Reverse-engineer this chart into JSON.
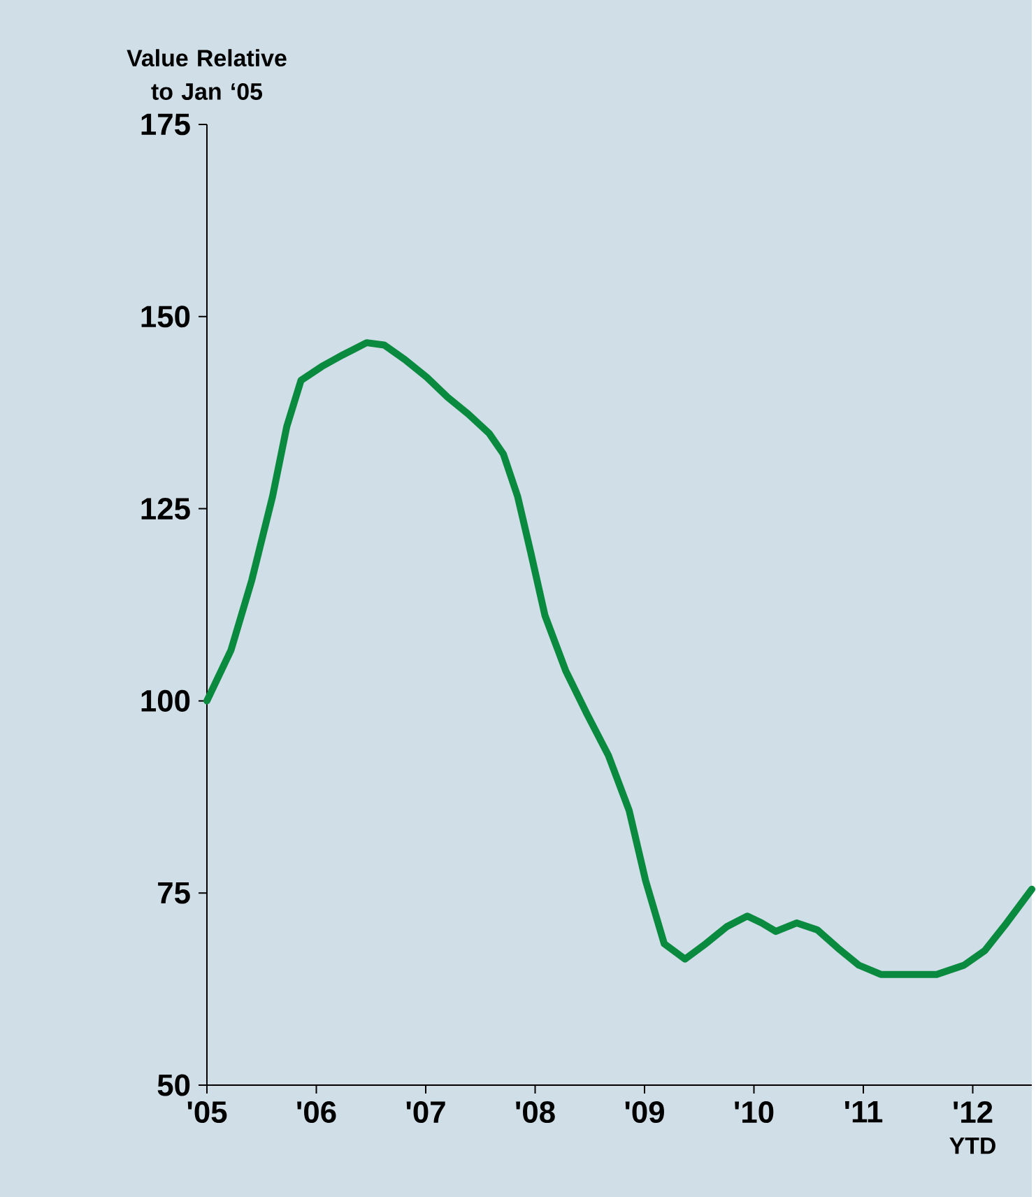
{
  "chart_data": {
    "type": "line",
    "ylabel": "Value Relative to Jan ‘05",
    "x": [
      2005.0,
      2005.22,
      2005.41,
      2005.6,
      2005.73,
      2005.86,
      2006.05,
      2006.24,
      2006.46,
      2006.62,
      2006.81,
      2007.01,
      2007.2,
      2007.39,
      2007.58,
      2007.71,
      2007.84,
      2007.96,
      2008.09,
      2008.28,
      2008.47,
      2008.67,
      2008.86,
      2009.01,
      2009.18,
      2009.37,
      2009.56,
      2009.75,
      2009.94,
      2010.07,
      2010.2,
      2010.39,
      2010.58,
      2010.77,
      2010.96,
      2011.16,
      2011.41,
      2011.67,
      2011.92,
      2012.11,
      2012.31,
      2012.54
    ],
    "series": [
      {
        "color": "#0a8a3e",
        "values": [
          100,
          106.6,
          115.7,
          126.6,
          135.7,
          141.7,
          143.5,
          145.0,
          146.6,
          146.3,
          144.4,
          142.1,
          139.5,
          137.3,
          134.8,
          132.1,
          126.6,
          119.3,
          111.1,
          103.9,
          98.4,
          92.9,
          85.7,
          76.6,
          68.4,
          66.4,
          68.4,
          70.6,
          72.0,
          71.1,
          70.0,
          71.1,
          70.2,
          67.8,
          65.6,
          64.4,
          64.4,
          64.4,
          65.6,
          67.5,
          71.1,
          75.5
        ]
      }
    ],
    "xlim": [
      2005,
      2012.54
    ],
    "xticks": [
      {
        "value": 2005,
        "label": "'05"
      },
      {
        "value": 2006,
        "label": "'06"
      },
      {
        "value": 2007,
        "label": "'07"
      },
      {
        "value": 2008,
        "label": "'08"
      },
      {
        "value": 2009,
        "label": "'09"
      },
      {
        "value": 2010,
        "label": "'10"
      },
      {
        "value": 2011,
        "label": "'11"
      },
      {
        "value": 2012,
        "label": "'12"
      }
    ],
    "ylim": [
      50,
      175
    ],
    "yticks": [
      50,
      75,
      100,
      125,
      150,
      175
    ],
    "annotations": [
      "YTD"
    ],
    "grid": false,
    "marker": "none",
    "line_style": "solid"
  }
}
